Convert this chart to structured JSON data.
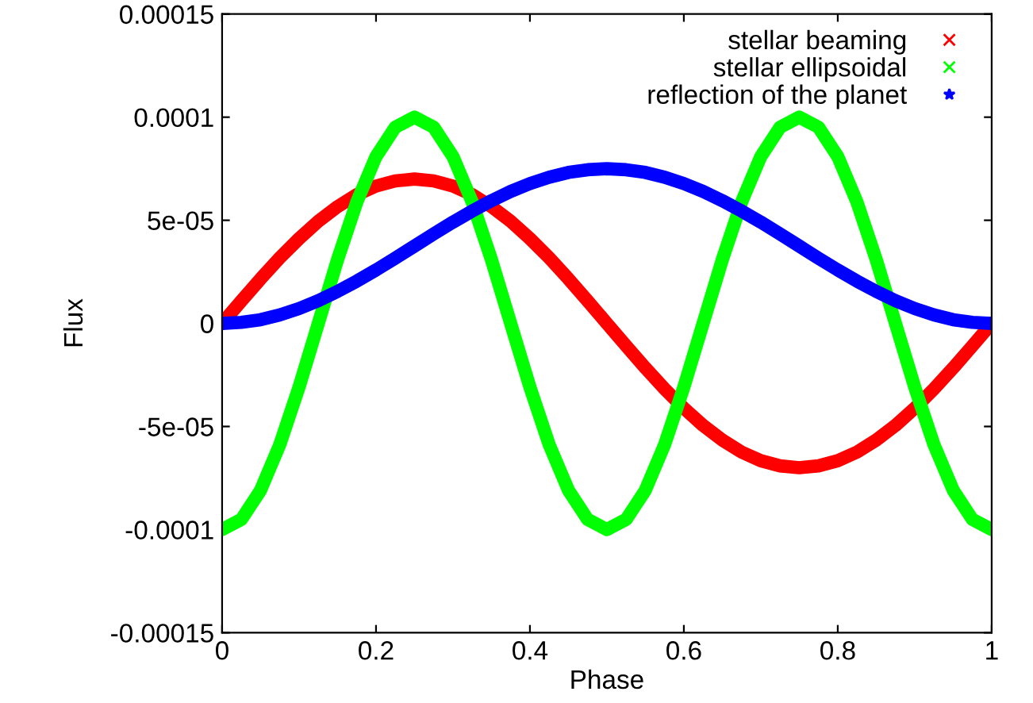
{
  "chart_data": {
    "type": "line",
    "xlabel": "Phase",
    "ylabel": "Flux",
    "x": [
      0,
      0.025,
      0.05,
      0.075,
      0.1,
      0.125,
      0.15,
      0.175,
      0.2,
      0.225,
      0.25,
      0.275,
      0.3,
      0.325,
      0.35,
      0.375,
      0.4,
      0.425,
      0.45,
      0.475,
      0.5,
      0.525,
      0.55,
      0.575,
      0.6,
      0.625,
      0.65,
      0.675,
      0.7,
      0.725,
      0.75,
      0.775,
      0.8,
      0.825,
      0.85,
      0.875,
      0.9,
      0.925,
      0.95,
      0.975,
      1
    ],
    "series": [
      {
        "name": "stellar beaming",
        "color": "#ff0000",
        "marker": "cross",
        "values": [
          0,
          1.09e-05,
          2.16e-05,
          3.18e-05,
          4.11e-05,
          4.95e-05,
          5.66e-05,
          6.24e-05,
          6.66e-05,
          6.91e-05,
          7e-05,
          6.91e-05,
          6.66e-05,
          6.24e-05,
          5.66e-05,
          4.95e-05,
          4.11e-05,
          3.18e-05,
          2.16e-05,
          1.09e-05,
          0,
          -1.09e-05,
          -2.16e-05,
          -3.18e-05,
          -4.11e-05,
          -4.95e-05,
          -5.66e-05,
          -6.24e-05,
          -6.66e-05,
          -6.91e-05,
          -7e-05,
          -6.91e-05,
          -6.66e-05,
          -6.24e-05,
          -5.66e-05,
          -4.95e-05,
          -4.11e-05,
          -3.18e-05,
          -2.16e-05,
          -1.09e-05,
          0
        ]
      },
      {
        "name": "stellar ellipsoidal",
        "color": "#00ff00",
        "marker": "cross",
        "values": [
          -0.0001,
          -9.51e-05,
          -8.09e-05,
          -5.88e-05,
          -3.09e-05,
          0,
          3.09e-05,
          5.88e-05,
          8.09e-05,
          9.51e-05,
          0.0001,
          9.51e-05,
          8.09e-05,
          5.88e-05,
          3.09e-05,
          0,
          -3.09e-05,
          -5.88e-05,
          -8.09e-05,
          -9.51e-05,
          -0.0001,
          -9.51e-05,
          -8.09e-05,
          -5.88e-05,
          -3.09e-05,
          0,
          3.09e-05,
          5.88e-05,
          8.09e-05,
          9.51e-05,
          0.0001,
          9.51e-05,
          8.09e-05,
          5.88e-05,
          3.09e-05,
          0,
          -3.09e-05,
          -5.88e-05,
          -8.09e-05,
          -9.51e-05,
          -0.0001
        ]
      },
      {
        "name": "reflection of the planet",
        "color": "#0000ff",
        "marker": "star",
        "values": [
          0,
          5e-07,
          1.8e-06,
          4.1e-06,
          7.2e-06,
          1.1e-05,
          1.55e-05,
          2.05e-05,
          2.59e-05,
          3.16e-05,
          3.75e-05,
          4.34e-05,
          4.91e-05,
          5.45e-05,
          5.95e-05,
          6.4e-05,
          6.78e-05,
          7.09e-05,
          7.32e-05,
          7.45e-05,
          7.5e-05,
          7.45e-05,
          7.32e-05,
          7.09e-05,
          6.78e-05,
          6.4e-05,
          5.95e-05,
          5.45e-05,
          4.91e-05,
          4.34e-05,
          3.75e-05,
          3.16e-05,
          2.59e-05,
          2.05e-05,
          1.55e-05,
          1.1e-05,
          7.2e-06,
          4.1e-06,
          1.8e-06,
          5e-07,
          0
        ]
      }
    ],
    "xlim": [
      0,
      1
    ],
    "xticks": [
      0,
      0.2,
      0.4,
      0.6,
      0.8,
      1
    ],
    "ylim": [
      -0.00015,
      0.00015
    ],
    "yticks": [
      {
        "value": -0.00015,
        "label": "-0.00015"
      },
      {
        "value": -0.0001,
        "label": "-0.0001"
      },
      {
        "value": -5e-05,
        "label": "-5e-05"
      },
      0,
      {
        "value": 5e-05,
        "label": "5e-05"
      },
      {
        "value": 0.0001,
        "label": "0.0001"
      },
      {
        "value": 0.00015,
        "label": "0.00015"
      }
    ],
    "grid": false,
    "legend": "top right"
  }
}
